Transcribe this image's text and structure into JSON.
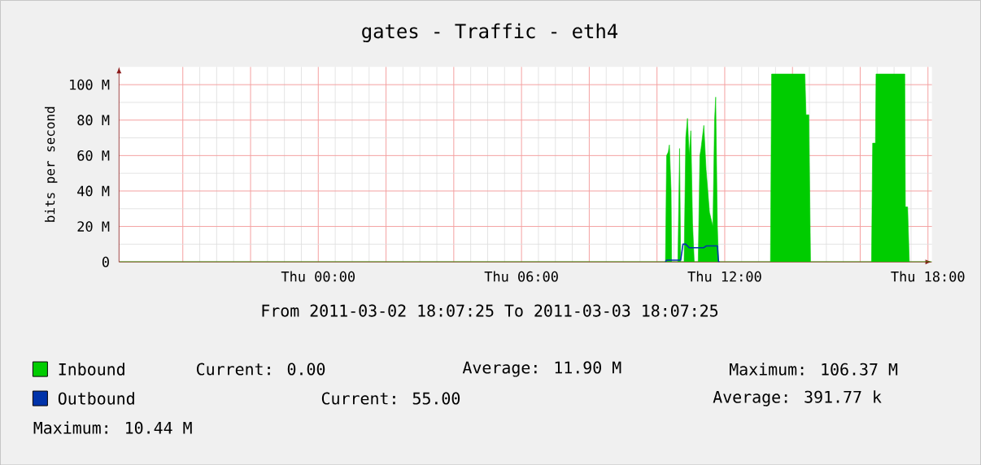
{
  "chart_data": {
    "type": "area",
    "title": "gates - Traffic - eth4",
    "ylabel": "bits per second",
    "x": [
      "2011-03-02T18:08",
      "2011-03-03T10:15",
      "2011-03-03T10:17",
      "2011-03-03T10:20",
      "2011-03-03T10:22",
      "2011-03-03T10:25",
      "2011-03-03T10:26",
      "2011-03-03T10:37",
      "2011-03-03T10:40",
      "2011-03-03T10:42",
      "2011-03-03T10:46",
      "2011-03-03T10:48",
      "2011-03-03T10:51",
      "2011-03-03T10:54",
      "2011-03-03T10:57",
      "2011-03-03T11:00",
      "2011-03-03T11:03",
      "2011-03-03T11:06",
      "2011-03-03T11:13",
      "2011-03-03T11:16",
      "2011-03-03T11:18",
      "2011-03-03T11:23",
      "2011-03-03T11:27",
      "2011-03-03T11:33",
      "2011-03-03T11:39",
      "2011-03-03T11:42",
      "2011-03-03T11:44",
      "2011-03-03T11:47",
      "2011-03-03T11:49",
      "2011-03-03T11:51",
      "2011-03-03T13:21",
      "2011-03-03T13:23",
      "2011-03-03T13:36",
      "2011-03-03T13:54",
      "2011-03-03T14:12",
      "2011-03-03T14:22",
      "2011-03-03T14:24",
      "2011-03-03T14:29",
      "2011-03-03T14:32",
      "2011-03-03T16:20",
      "2011-03-03T16:22",
      "2011-03-03T16:27",
      "2011-03-03T16:28",
      "2011-03-03T16:48",
      "2011-03-03T17:06",
      "2011-03-03T17:19",
      "2011-03-03T17:20",
      "2011-03-03T17:24",
      "2011-03-03T17:27",
      "2011-03-03T18:07"
    ],
    "series": [
      {
        "name": "Inbound",
        "color": "#00cc00",
        "values": [
          0,
          0,
          60,
          62,
          66,
          40,
          0,
          0,
          64,
          0,
          0,
          0,
          70,
          81,
          60,
          74,
          22,
          0,
          0,
          60,
          64,
          77,
          52,
          28,
          20,
          80,
          93,
          20,
          0,
          0,
          0,
          106,
          106,
          106,
          106,
          106,
          83,
          83,
          0,
          0,
          67,
          67,
          106,
          106,
          106,
          106,
          31,
          31,
          0,
          0
        ]
      },
      {
        "name": "Outbound",
        "type": "line",
        "color": "#0033aa",
        "values": [
          null,
          0,
          1,
          1,
          1,
          1,
          1,
          1,
          1,
          1,
          10,
          10,
          10,
          9,
          8,
          8,
          8,
          8,
          8,
          8,
          8,
          8,
          9,
          9,
          9,
          9,
          9,
          9,
          0,
          0,
          null,
          null,
          null,
          null,
          null,
          null,
          null,
          null,
          null,
          null,
          null,
          null,
          null,
          null,
          null,
          null,
          null,
          null,
          null,
          null
        ]
      }
    ],
    "xlim": [
      "2011-03-02T18:07",
      "2011-03-03T18:07"
    ],
    "xticks": [
      {
        "value": "2011-03-02T20:00",
        "label": null
      },
      {
        "value": "2011-03-02T22:00",
        "label": null
      },
      {
        "value": "2011-03-03T00:00",
        "label": "Thu 00:00"
      },
      {
        "value": "2011-03-03T02:00",
        "label": null
      },
      {
        "value": "2011-03-03T04:00",
        "label": null
      },
      {
        "value": "2011-03-03T06:00",
        "label": "Thu 06:00"
      },
      {
        "value": "2011-03-03T08:00",
        "label": null
      },
      {
        "value": "2011-03-03T10:00",
        "label": null
      },
      {
        "value": "2011-03-03T12:00",
        "label": "Thu 12:00"
      },
      {
        "value": "2011-03-03T14:00",
        "label": null
      },
      {
        "value": "2011-03-03T16:00",
        "label": null
      },
      {
        "value": "2011-03-03T18:00",
        "label": "Thu 18:00"
      }
    ],
    "ylim": [
      0,
      110
    ],
    "yticks": [
      0,
      {
        "value": 20,
        "label": "20 M"
      },
      {
        "value": 40,
        "label": "40 M"
      },
      {
        "value": 60,
        "label": "60 M"
      },
      {
        "value": 80,
        "label": "80 M"
      },
      {
        "value": 100,
        "label": "100 M"
      }
    ],
    "grid": true,
    "legend": "bottom",
    "annotations": [
      "From 2011-03-02 18:07:25 To 2011-03-03 18:07:25",
      "Current: 0.00",
      "Average: 11.90 M",
      "Maximum: 106.37 M",
      "Current: 55.00",
      "Average: 391.77 k",
      "Maximum: 10.44 M"
    ]
  }
}
